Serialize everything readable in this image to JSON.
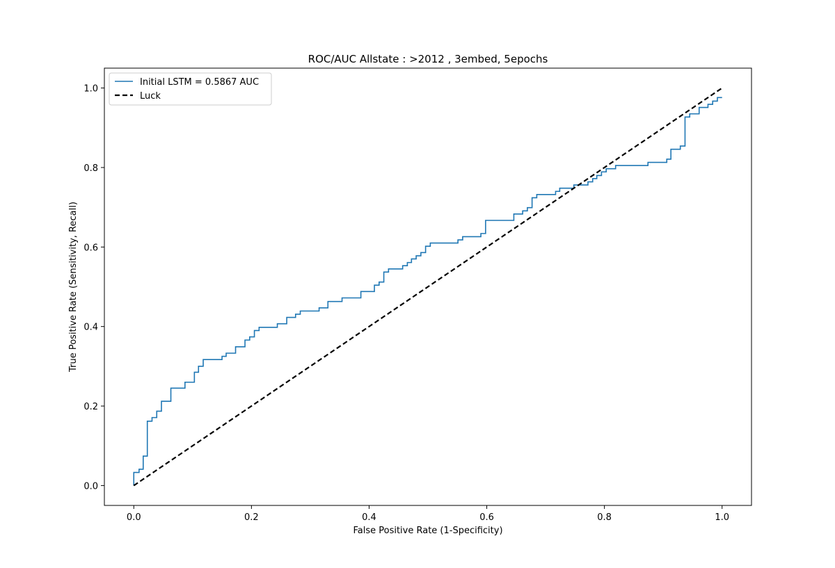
{
  "chart_data": {
    "type": "line",
    "title": "ROC/AUC Allstate : >2012 , 3embed, 5epochs",
    "xlabel": "False Positive Rate (1-Specificity)",
    "ylabel": "True Positive Rate (Sensitivity, Recall)",
    "xlim": [
      -0.05,
      1.05
    ],
    "ylim": [
      -0.05,
      1.05
    ],
    "xticks": [
      0.0,
      0.2,
      0.4,
      0.6,
      0.8,
      1.0
    ],
    "xtick_labels": [
      "0.0",
      "0.2",
      "0.4",
      "0.6",
      "0.8",
      "1.0"
    ],
    "yticks": [
      0.0,
      0.2,
      0.4,
      0.6,
      0.8,
      1.0
    ],
    "ytick_labels": [
      "0.0",
      "0.2",
      "0.4",
      "0.6",
      "0.8",
      "1.0"
    ],
    "grid": false,
    "legend_position": "top-left",
    "series": [
      {
        "name": "Initial LSTM = 0.5867 AUC",
        "color": "#1f77b4",
        "style": "solid",
        "step": true,
        "points": [
          [
            0.0,
            0.0
          ],
          [
            0.0,
            0.033
          ],
          [
            0.009,
            0.033
          ],
          [
            0.009,
            0.041
          ],
          [
            0.016,
            0.041
          ],
          [
            0.016,
            0.074
          ],
          [
            0.023,
            0.074
          ],
          [
            0.023,
            0.162
          ],
          [
            0.031,
            0.162
          ],
          [
            0.031,
            0.171
          ],
          [
            0.039,
            0.171
          ],
          [
            0.039,
            0.187
          ],
          [
            0.047,
            0.187
          ],
          [
            0.047,
            0.212
          ],
          [
            0.063,
            0.212
          ],
          [
            0.063,
            0.245
          ],
          [
            0.087,
            0.245
          ],
          [
            0.087,
            0.26
          ],
          [
            0.103,
            0.26
          ],
          [
            0.103,
            0.285
          ],
          [
            0.11,
            0.285
          ],
          [
            0.11,
            0.3
          ],
          [
            0.118,
            0.3
          ],
          [
            0.118,
            0.317
          ],
          [
            0.15,
            0.317
          ],
          [
            0.15,
            0.325
          ],
          [
            0.157,
            0.325
          ],
          [
            0.157,
            0.333
          ],
          [
            0.173,
            0.333
          ],
          [
            0.173,
            0.349
          ],
          [
            0.189,
            0.349
          ],
          [
            0.189,
            0.366
          ],
          [
            0.197,
            0.366
          ],
          [
            0.197,
            0.374
          ],
          [
            0.205,
            0.374
          ],
          [
            0.205,
            0.39
          ],
          [
            0.213,
            0.39
          ],
          [
            0.213,
            0.398
          ],
          [
            0.244,
            0.398
          ],
          [
            0.244,
            0.407
          ],
          [
            0.26,
            0.407
          ],
          [
            0.26,
            0.423
          ],
          [
            0.275,
            0.423
          ],
          [
            0.275,
            0.431
          ],
          [
            0.283,
            0.431
          ],
          [
            0.283,
            0.439
          ],
          [
            0.315,
            0.439
          ],
          [
            0.315,
            0.447
          ],
          [
            0.33,
            0.447
          ],
          [
            0.33,
            0.463
          ],
          [
            0.354,
            0.463
          ],
          [
            0.354,
            0.472
          ],
          [
            0.386,
            0.472
          ],
          [
            0.386,
            0.488
          ],
          [
            0.409,
            0.488
          ],
          [
            0.409,
            0.504
          ],
          [
            0.417,
            0.504
          ],
          [
            0.417,
            0.512
          ],
          [
            0.425,
            0.512
          ],
          [
            0.425,
            0.537
          ],
          [
            0.433,
            0.537
          ],
          [
            0.433,
            0.545
          ],
          [
            0.457,
            0.545
          ],
          [
            0.457,
            0.553
          ],
          [
            0.465,
            0.553
          ],
          [
            0.465,
            0.561
          ],
          [
            0.472,
            0.561
          ],
          [
            0.472,
            0.57
          ],
          [
            0.48,
            0.57
          ],
          [
            0.48,
            0.578
          ],
          [
            0.488,
            0.578
          ],
          [
            0.488,
            0.586
          ],
          [
            0.496,
            0.586
          ],
          [
            0.496,
            0.602
          ],
          [
            0.504,
            0.602
          ],
          [
            0.504,
            0.61
          ],
          [
            0.551,
            0.61
          ],
          [
            0.551,
            0.618
          ],
          [
            0.559,
            0.618
          ],
          [
            0.559,
            0.626
          ],
          [
            0.59,
            0.626
          ],
          [
            0.59,
            0.634
          ],
          [
            0.598,
            0.634
          ],
          [
            0.598,
            0.667
          ],
          [
            0.646,
            0.667
          ],
          [
            0.646,
            0.683
          ],
          [
            0.661,
            0.683
          ],
          [
            0.661,
            0.691
          ],
          [
            0.669,
            0.691
          ],
          [
            0.669,
            0.699
          ],
          [
            0.677,
            0.699
          ],
          [
            0.677,
            0.724
          ],
          [
            0.685,
            0.724
          ],
          [
            0.685,
            0.732
          ],
          [
            0.717,
            0.732
          ],
          [
            0.717,
            0.74
          ],
          [
            0.724,
            0.74
          ],
          [
            0.724,
            0.748
          ],
          [
            0.748,
            0.748
          ],
          [
            0.748,
            0.756
          ],
          [
            0.772,
            0.756
          ],
          [
            0.772,
            0.764
          ],
          [
            0.78,
            0.764
          ],
          [
            0.78,
            0.772
          ],
          [
            0.787,
            0.772
          ],
          [
            0.787,
            0.78
          ],
          [
            0.795,
            0.78
          ],
          [
            0.795,
            0.789
          ],
          [
            0.803,
            0.789
          ],
          [
            0.803,
            0.797
          ],
          [
            0.819,
            0.797
          ],
          [
            0.819,
            0.805
          ],
          [
            0.874,
            0.805
          ],
          [
            0.874,
            0.813
          ],
          [
            0.906,
            0.813
          ],
          [
            0.906,
            0.821
          ],
          [
            0.913,
            0.821
          ],
          [
            0.913,
            0.846
          ],
          [
            0.929,
            0.846
          ],
          [
            0.929,
            0.854
          ],
          [
            0.937,
            0.854
          ],
          [
            0.937,
            0.927
          ],
          [
            0.945,
            0.927
          ],
          [
            0.945,
            0.935
          ],
          [
            0.961,
            0.935
          ],
          [
            0.961,
            0.951
          ],
          [
            0.976,
            0.951
          ],
          [
            0.976,
            0.959
          ],
          [
            0.984,
            0.959
          ],
          [
            0.984,
            0.967
          ],
          [
            0.992,
            0.967
          ],
          [
            0.992,
            0.976
          ],
          [
            1.0,
            0.976
          ]
        ]
      },
      {
        "name": "Luck",
        "color": "#000000",
        "style": "dashed",
        "points": [
          [
            0.0,
            0.0
          ],
          [
            1.0,
            1.0
          ]
        ]
      }
    ]
  }
}
